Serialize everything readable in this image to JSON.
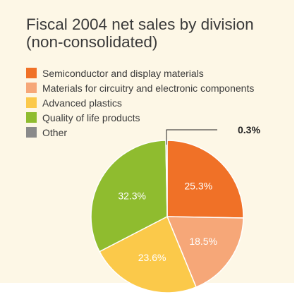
{
  "chart_data": {
    "type": "pie",
    "title_lines": [
      "Fiscal 2004 net sales by division",
      "(non-consolidated)"
    ],
    "slices": [
      {
        "name": "Semiconductor and display materials",
        "value": 25.3,
        "label": "25.3%",
        "color": "#f07127"
      },
      {
        "name": "Materials for circuitry and electronic components",
        "value": 18.5,
        "label": "18.5%",
        "color": "#f6a778"
      },
      {
        "name": "Advanced plastics",
        "value": 23.6,
        "label": "23.6%",
        "color": "#fbc94a"
      },
      {
        "name": "Quality of life products",
        "value": 32.3,
        "label": "32.3%",
        "color": "#8fbc2f"
      },
      {
        "name": "Other",
        "value": 0.3,
        "label": "0.3%",
        "color": "#8a8a8a"
      }
    ],
    "start": "top",
    "direction": "clockwise",
    "legend_position": "top-left"
  }
}
